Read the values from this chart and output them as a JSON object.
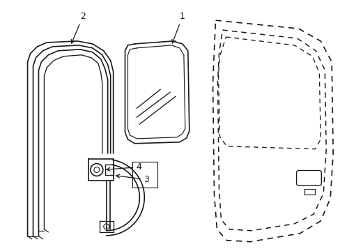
{
  "bg_color": "#ffffff",
  "line_color": "#1a1a1a",
  "fig_width": 4.89,
  "fig_height": 3.6,
  "dpi": 100,
  "ylim": [
    0,
    360
  ],
  "xlim": [
    0,
    489
  ]
}
